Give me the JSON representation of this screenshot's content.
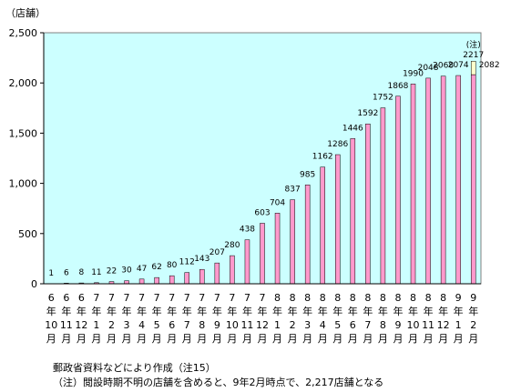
{
  "unit_label": "（店舗）",
  "notes": {
    "source": "郵政省資料などにより作成（注15）",
    "footnote": "（注）閲設時期不明の店舗を含めると、9年2月時点で、2,217店舗となる"
  },
  "chart_data": {
    "type": "bar",
    "ylim": [
      0,
      2500
    ],
    "yticks": [
      0,
      500,
      1000,
      1500,
      2000,
      2500
    ],
    "ytick_labels": [
      "0",
      "500",
      "1,000",
      "1,500",
      "2,000",
      "2,500"
    ],
    "grid": false,
    "categories": [
      [
        "6",
        "10"
      ],
      [
        "6",
        "11"
      ],
      [
        "6",
        "12"
      ],
      [
        "7",
        "1"
      ],
      [
        "7",
        "2"
      ],
      [
        "7",
        "3"
      ],
      [
        "7",
        "4"
      ],
      [
        "7",
        "5"
      ],
      [
        "7",
        "6"
      ],
      [
        "7",
        "7"
      ],
      [
        "7",
        "8"
      ],
      [
        "7",
        "9"
      ],
      [
        "7",
        "10"
      ],
      [
        "7",
        "11"
      ],
      [
        "7",
        "12"
      ],
      [
        "8",
        "1"
      ],
      [
        "8",
        "2"
      ],
      [
        "8",
        "3"
      ],
      [
        "8",
        "4"
      ],
      [
        "8",
        "5"
      ],
      [
        "8",
        "6"
      ],
      [
        "8",
        "7"
      ],
      [
        "8",
        "8"
      ],
      [
        "8",
        "9"
      ],
      [
        "8",
        "10"
      ],
      [
        "8",
        "11"
      ],
      [
        "8",
        "12"
      ],
      [
        "9",
        "1"
      ],
      [
        "9",
        "2"
      ]
    ],
    "category_year_suffix": "年",
    "category_month_suffix": "月",
    "values": [
      1,
      6,
      8,
      11,
      22,
      30,
      47,
      62,
      80,
      112,
      143,
      207,
      280,
      438,
      603,
      704,
      837,
      985,
      1162,
      1286,
      1446,
      1592,
      1752,
      1868,
      1990,
      2048,
      2068,
      2074,
      2082
    ],
    "value_labels": [
      "1",
      "6",
      "8",
      "11",
      "22",
      "30",
      "47",
      "62",
      "80",
      "112",
      "143",
      "207",
      "280",
      "438",
      "603",
      "704",
      "837",
      "985",
      "1162",
      "1286",
      "1446",
      "1592",
      "1752",
      "1868",
      "1990",
      "2048",
      "2068",
      "2074",
      "2082"
    ],
    "extra_stack": {
      "category_index": 28,
      "total": 2217,
      "label": "2217",
      "note_mark": "(注)"
    },
    "colors": {
      "plot_bg": "#ccffff",
      "bar": "#ff99cc",
      "extra_bar": "#ffffcc",
      "axis": "#000000"
    }
  }
}
